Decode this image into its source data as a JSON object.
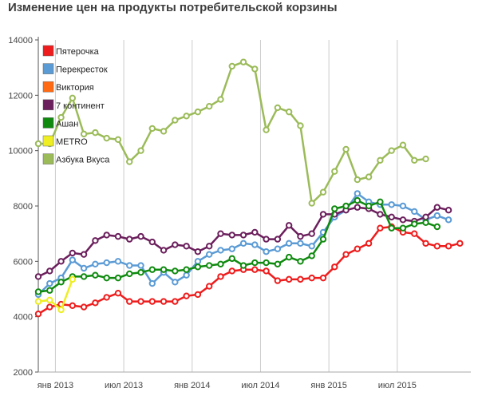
{
  "chart_data": {
    "type": "line",
    "title": "Изменение цен на продукты потребительской корзины",
    "xlabel": "",
    "ylabel": "",
    "ylim": [
      2000,
      14000
    ],
    "y_ticks": [
      "2000",
      "4000",
      "6000",
      "8000",
      "10000",
      "12000",
      "14000"
    ],
    "x_ticks": [
      "янв 2013",
      "июл 2013",
      "янв 2014",
      "июл 2014",
      "янв 2015",
      "июл 2015"
    ],
    "grid": "vertical",
    "legend_position": "top-left inside",
    "colors": {
      "Пятерочка": "#ee1c1c",
      "Перекресток": "#5b9bd5",
      "Виктория": "#ff6a13",
      "7 континент": "#6b1f5c",
      "Ашан": "#0f8a0f",
      "METRO": "#eeee22",
      "Азбука Вкуса": "#9bbb59"
    },
    "series": [
      {
        "name": "Пятерочка",
        "values": [
          [
            0,
            4100
          ],
          [
            1,
            4350
          ],
          [
            2,
            4450
          ],
          [
            3,
            4400
          ],
          [
            4,
            4350
          ],
          [
            5,
            4500
          ],
          [
            6,
            4700
          ],
          [
            7,
            4850
          ],
          [
            8,
            4550
          ],
          [
            9,
            4550
          ],
          [
            10,
            4550
          ],
          [
            11,
            4550
          ],
          [
            12,
            4550
          ],
          [
            13,
            4750
          ],
          [
            14,
            4800
          ],
          [
            15,
            5100
          ],
          [
            16,
            5450
          ],
          [
            17,
            5650
          ],
          [
            18,
            5700
          ],
          [
            19,
            5700
          ],
          [
            20,
            5650
          ],
          [
            21,
            5300
          ],
          [
            22,
            5350
          ],
          [
            23,
            5350
          ],
          [
            24,
            5400
          ],
          [
            25,
            5400
          ],
          [
            26,
            5800
          ],
          [
            27,
            6250
          ],
          [
            28,
            6450
          ],
          [
            29,
            6650
          ],
          [
            30,
            7200
          ],
          [
            31,
            7250
          ],
          [
            32,
            7050
          ],
          [
            33,
            7000
          ],
          [
            34,
            6650
          ],
          [
            35,
            6550
          ],
          [
            36,
            6550
          ],
          [
            37,
            6650
          ]
        ]
      },
      {
        "name": "Перекресток",
        "values": [
          [
            0,
            4800
          ],
          [
            1,
            5200
          ],
          [
            2,
            5400
          ],
          [
            3,
            6050
          ],
          [
            4,
            5750
          ],
          [
            5,
            5900
          ],
          [
            6,
            5950
          ],
          [
            7,
            6000
          ],
          [
            8,
            5850
          ],
          [
            9,
            5850
          ],
          [
            10,
            5200
          ],
          [
            11,
            5600
          ],
          [
            12,
            5250
          ],
          [
            13,
            5500
          ],
          [
            14,
            6000
          ],
          [
            15,
            6250
          ],
          [
            16,
            6400
          ],
          [
            17,
            6450
          ],
          [
            18,
            6650
          ],
          [
            19,
            6600
          ],
          [
            20,
            6350
          ],
          [
            21,
            6450
          ],
          [
            22,
            6650
          ],
          [
            23,
            6650
          ],
          [
            24,
            6550
          ],
          [
            25,
            7050
          ],
          [
            26,
            7600
          ],
          [
            27,
            7850
          ],
          [
            28,
            8450
          ],
          [
            29,
            8150
          ],
          [
            30,
            8050
          ],
          [
            31,
            8050
          ],
          [
            32,
            8000
          ],
          [
            33,
            7800
          ],
          [
            34,
            7500
          ],
          [
            35,
            7650
          ],
          [
            36,
            7500
          ]
        ]
      },
      {
        "name": "7 континент",
        "values": [
          [
            0,
            5450
          ],
          [
            1,
            5650
          ],
          [
            2,
            6000
          ],
          [
            3,
            6300
          ],
          [
            4,
            6250
          ],
          [
            5,
            6750
          ],
          [
            6,
            6950
          ],
          [
            7,
            6900
          ],
          [
            8,
            6800
          ],
          [
            9,
            6900
          ],
          [
            10,
            6700
          ],
          [
            11,
            6400
          ],
          [
            12,
            6600
          ],
          [
            13,
            6550
          ],
          [
            14,
            6350
          ],
          [
            15,
            6550
          ],
          [
            16,
            7000
          ],
          [
            17,
            6950
          ],
          [
            18,
            6950
          ],
          [
            19,
            7050
          ],
          [
            20,
            6800
          ],
          [
            21,
            6800
          ],
          [
            22,
            7300
          ],
          [
            23,
            6900
          ],
          [
            24,
            7000
          ],
          [
            25,
            7700
          ],
          [
            26,
            7700
          ],
          [
            27,
            7850
          ],
          [
            28,
            7950
          ],
          [
            29,
            7900
          ],
          [
            30,
            7700
          ],
          [
            31,
            7600
          ],
          [
            32,
            7500
          ],
          [
            33,
            7450
          ],
          [
            34,
            7600
          ],
          [
            35,
            7950
          ],
          [
            36,
            7850
          ]
        ]
      },
      {
        "name": "Ашан",
        "values": [
          [
            0,
            4900
          ],
          [
            1,
            4950
          ],
          [
            2,
            5250
          ],
          [
            3,
            5450
          ],
          [
            4,
            5450
          ],
          [
            5,
            5500
          ],
          [
            6,
            5400
          ],
          [
            7,
            5400
          ],
          [
            8,
            5550
          ],
          [
            9,
            5600
          ],
          [
            10,
            5700
          ],
          [
            11,
            5700
          ],
          [
            12,
            5650
          ],
          [
            13,
            5700
          ],
          [
            14,
            5800
          ],
          [
            15,
            5850
          ],
          [
            16,
            5900
          ],
          [
            17,
            6100
          ],
          [
            18,
            5850
          ],
          [
            19,
            5950
          ],
          [
            20,
            5950
          ],
          [
            21,
            5900
          ],
          [
            22,
            6150
          ],
          [
            23,
            6000
          ],
          [
            24,
            6200
          ],
          [
            25,
            6800
          ],
          [
            26,
            7900
          ],
          [
            27,
            8000
          ],
          [
            28,
            8200
          ],
          [
            29,
            8000
          ],
          [
            30,
            8150
          ],
          [
            31,
            7200
          ],
          [
            32,
            7200
          ],
          [
            33,
            7350
          ],
          [
            34,
            7400
          ],
          [
            35,
            7250
          ]
        ]
      },
      {
        "name": "METRO",
        "values": [
          [
            0,
            4550
          ],
          [
            1,
            4600
          ],
          [
            2,
            4250
          ],
          [
            3,
            5350
          ]
        ]
      },
      {
        "name": "Азбука Вкуса",
        "values": [
          [
            0,
            10250
          ],
          [
            1,
            10250
          ],
          [
            2,
            11200
          ],
          [
            3,
            11900
          ],
          [
            4,
            10600
          ],
          [
            5,
            10650
          ],
          [
            6,
            10450
          ],
          [
            7,
            10400
          ],
          [
            8,
            9600
          ],
          [
            9,
            10000
          ],
          [
            10,
            10800
          ],
          [
            11,
            10700
          ],
          [
            12,
            11100
          ],
          [
            13,
            11250
          ],
          [
            14,
            11400
          ],
          [
            15,
            11600
          ],
          [
            16,
            11850
          ],
          [
            17,
            13050
          ],
          [
            18,
            13200
          ],
          [
            19,
            12950
          ],
          [
            20,
            10750
          ],
          [
            21,
            11550
          ],
          [
            22,
            11400
          ],
          [
            23,
            10900
          ],
          [
            24,
            8100
          ],
          [
            25,
            8500
          ],
          [
            26,
            9250
          ],
          [
            27,
            10050
          ],
          [
            28,
            8950
          ],
          [
            29,
            9050
          ],
          [
            30,
            9650
          ],
          [
            31,
            10000
          ],
          [
            32,
            10200
          ],
          [
            33,
            9650
          ],
          [
            34,
            9700
          ]
        ]
      }
    ]
  }
}
